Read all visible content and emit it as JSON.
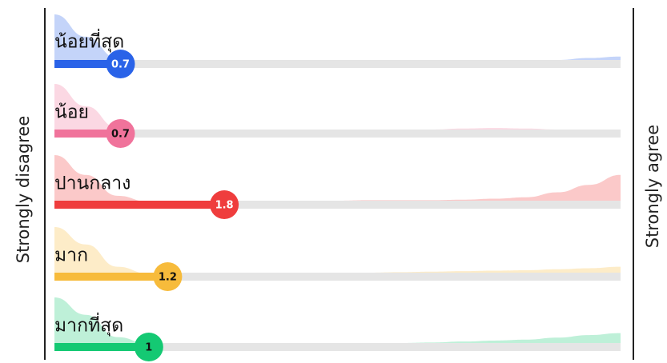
{
  "chart_data": {
    "type": "bar",
    "orientation": "horizontal",
    "left_label": "Strongly disagree",
    "right_label": "Strongly agree",
    "xlim": [
      0,
      6
    ],
    "categories": [
      "น้อยที่สุด",
      "น้อย",
      "ปานกลาง",
      "มาก",
      "มากที่สุด"
    ],
    "series": [
      {
        "values": [
          0.7,
          0.7,
          1.8,
          1.2,
          1.0
        ],
        "value_labels": [
          "0.7",
          "0.7",
          "1.8",
          "1.2",
          "1"
        ]
      }
    ],
    "colors": [
      "#2a63e8",
      "#f0739b",
      "#ef3d3d",
      "#f7bb3b",
      "#14c973"
    ],
    "distributions": [
      [
        1.0,
        0.55,
        0.12,
        0.04,
        0.03,
        0.03,
        0.03,
        0.03,
        0.03,
        0.03,
        0.03,
        0.03,
        0.04,
        0.05,
        0.05,
        0.06,
        0.08,
        0.12,
        0.15
      ],
      [
        1.0,
        0.55,
        0.12,
        0.05,
        0.04,
        0.04,
        0.04,
        0.04,
        0.04,
        0.04,
        0.05,
        0.06,
        0.08,
        0.1,
        0.11,
        0.1,
        0.08,
        0.07,
        0.07
      ],
      [
        1.0,
        0.6,
        0.18,
        0.06,
        0.05,
        0.05,
        0.05,
        0.06,
        0.07,
        0.08,
        0.09,
        0.09,
        0.09,
        0.1,
        0.12,
        0.15,
        0.25,
        0.4,
        0.6
      ],
      [
        1.0,
        0.65,
        0.2,
        0.06,
        0.04,
        0.04,
        0.04,
        0.05,
        0.06,
        0.07,
        0.08,
        0.09,
        0.1,
        0.11,
        0.12,
        0.13,
        0.15,
        0.17,
        0.2
      ],
      [
        1.0,
        0.65,
        0.2,
        0.06,
        0.04,
        0.04,
        0.04,
        0.04,
        0.05,
        0.06,
        0.07,
        0.08,
        0.09,
        0.11,
        0.13,
        0.15,
        0.19,
        0.24,
        0.28
      ]
    ],
    "label_colors": [
      "#ffffff",
      "#111111",
      "#ffffff",
      "#111111",
      "#111111"
    ],
    "background": "#ffffff",
    "track_color": "#e5e5e5",
    "grid": false,
    "legend": "none"
  }
}
